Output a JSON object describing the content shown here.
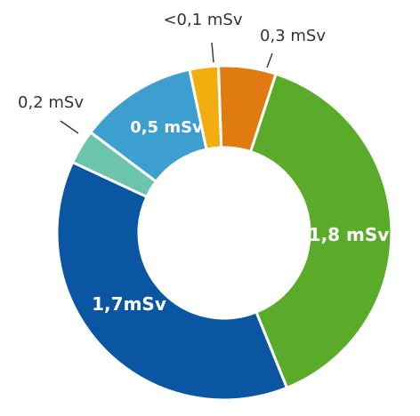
{
  "chart_data": {
    "type": "pie",
    "title": "",
    "unit": "mSv",
    "slices": [
      {
        "label": "0,3 mSv",
        "value": 0.3,
        "color": "#e07b11",
        "label_style": "outside"
      },
      {
        "label": "1,8 mSv",
        "value": 1.8,
        "color": "#5aab2a",
        "label_style": "inside"
      },
      {
        "label": "1,7mSv",
        "value": 1.7,
        "color": "#0a56a2",
        "label_style": "inside"
      },
      {
        "label": "0,2 mSv",
        "value": 0.2,
        "color": "#6cc4ad",
        "label_style": "outside"
      },
      {
        "label": "0,5 mSv",
        "value": 0.5,
        "color": "#3d9fd0",
        "label_style": "inside"
      },
      {
        "label": "<0,1 mSv",
        "value": 0.1,
        "color": "#f2ad0f",
        "label_style": "outside"
      }
    ]
  }
}
